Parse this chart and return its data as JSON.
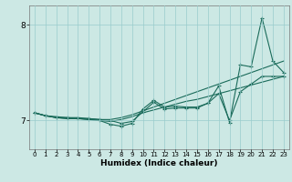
{
  "xlabel": "Humidex (Indice chaleur)",
  "bg_color": "#cce8e4",
  "grid_color": "#99cccc",
  "line_color": "#1a6b5a",
  "xlim": [
    -0.5,
    23.5
  ],
  "ylim": [
    6.7,
    8.2
  ],
  "yticks": [
    7,
    8
  ],
  "xticks": [
    0,
    1,
    2,
    3,
    4,
    5,
    6,
    7,
    8,
    9,
    10,
    11,
    12,
    13,
    14,
    15,
    16,
    17,
    18,
    19,
    20,
    21,
    22,
    23
  ],
  "line1_x": [
    0,
    1,
    2,
    3,
    4,
    5,
    6,
    7,
    8,
    9,
    10,
    11,
    12,
    13,
    14,
    15,
    16,
    17,
    18,
    19,
    20,
    21,
    22,
    23
  ],
  "line1_y": [
    7.08,
    7.05,
    7.04,
    7.03,
    7.03,
    7.02,
    7.01,
    7.01,
    7.03,
    7.06,
    7.1,
    7.14,
    7.18,
    7.22,
    7.26,
    7.3,
    7.34,
    7.38,
    7.42,
    7.46,
    7.5,
    7.54,
    7.58,
    7.62
  ],
  "line2_x": [
    0,
    1,
    2,
    3,
    4,
    5,
    6,
    7,
    8,
    9,
    10,
    11,
    12,
    13,
    14,
    15,
    16,
    17,
    18,
    19,
    20,
    21,
    22,
    23
  ],
  "line2_y": [
    7.08,
    7.05,
    7.03,
    7.02,
    7.02,
    7.01,
    7.0,
    6.99,
    7.01,
    7.04,
    7.08,
    7.11,
    7.14,
    7.17,
    7.2,
    7.22,
    7.25,
    7.28,
    7.31,
    7.34,
    7.37,
    7.4,
    7.43,
    7.46
  ],
  "line3_x": [
    0,
    1,
    2,
    3,
    4,
    5,
    6,
    7,
    8,
    9,
    10,
    11,
    12,
    13,
    14,
    15,
    16,
    17,
    18,
    19,
    20,
    21,
    22,
    23
  ],
  "line3_y": [
    7.08,
    7.05,
    7.03,
    7.02,
    7.02,
    7.01,
    7.0,
    6.96,
    6.94,
    6.97,
    7.12,
    7.21,
    7.14,
    7.15,
    7.14,
    7.14,
    7.18,
    7.36,
    6.98,
    7.58,
    7.56,
    8.07,
    7.62,
    7.5
  ],
  "line4_x": [
    0,
    1,
    2,
    3,
    4,
    5,
    6,
    7,
    8,
    9,
    10,
    11,
    12,
    13,
    14,
    15,
    16,
    17,
    18,
    19,
    20,
    21,
    22,
    23
  ],
  "line4_y": [
    7.08,
    7.05,
    7.03,
    7.03,
    7.02,
    7.02,
    7.01,
    7.0,
    6.97,
    6.99,
    7.09,
    7.19,
    7.12,
    7.13,
    7.13,
    7.13,
    7.18,
    7.28,
    7.0,
    7.3,
    7.38,
    7.46,
    7.46,
    7.46
  ]
}
